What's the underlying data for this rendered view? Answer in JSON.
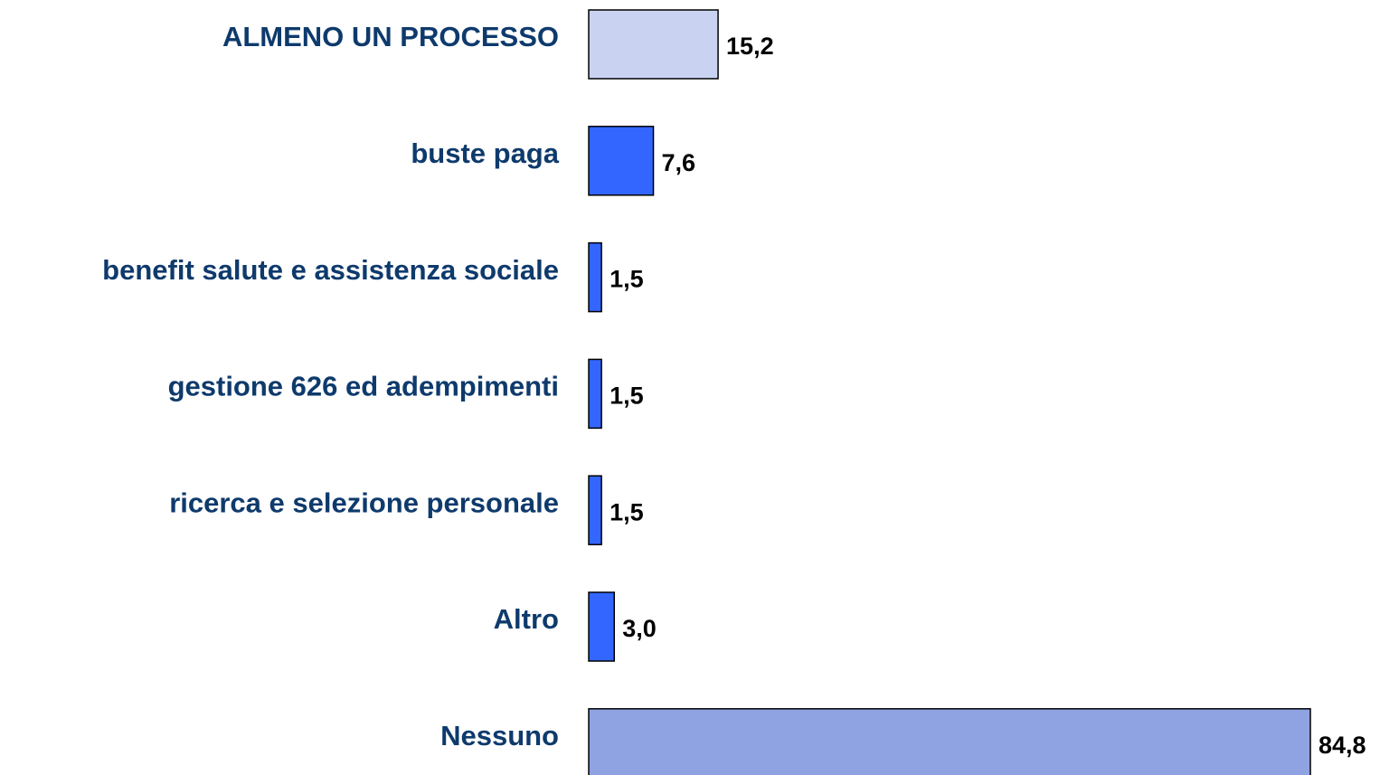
{
  "chart_data": {
    "type": "hbar",
    "categories": [
      "ALMENO UN PROCESSO",
      "buste paga",
      "benefit salute e assistenza sociale",
      "gestione 626 ed adempimenti",
      "ricerca e selezione personale",
      "Altro",
      "Nessuno"
    ],
    "values": [
      15.2,
      7.6,
      1.5,
      1.5,
      1.5,
      3.0,
      84.8
    ],
    "value_labels": [
      "15,2",
      "7,6",
      "1,5",
      "1,5",
      "1,5",
      "3,0",
      "84,8"
    ],
    "colors": [
      "#c9d3f1",
      "#3366ff",
      "#3366ff",
      "#3366ff",
      "#3366ff",
      "#3366ff",
      "#8fa2e2"
    ]
  }
}
